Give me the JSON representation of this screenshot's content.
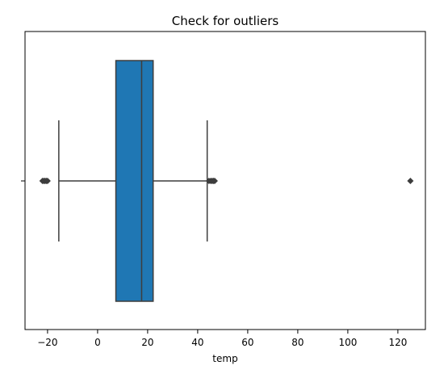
{
  "chart_data": {
    "type": "box",
    "title": "Check for outliers",
    "xlabel": "temp",
    "ylabel": "",
    "xlim": [
      -29,
      131
    ],
    "xticks": [
      -20,
      0,
      20,
      40,
      60,
      80,
      100,
      120
    ],
    "xtick_labels": [
      "−20",
      "0",
      "20",
      "40",
      "60",
      "80",
      "100",
      "120"
    ],
    "grid": false,
    "box": {
      "whisker_low": -15.5,
      "q1": 7.3,
      "median": 17.6,
      "q3": 22.2,
      "whisker_high": 43.8,
      "outliers": [
        -22.0,
        -21.5,
        -21.0,
        -20.5,
        -20.0,
        44.5,
        45.2,
        45.8,
        46.3,
        46.8,
        125.0
      ]
    },
    "colors": {
      "box_fill": "#1f77b4",
      "lines": "#3d3d3d",
      "outlier": "#3d3d3d"
    }
  }
}
